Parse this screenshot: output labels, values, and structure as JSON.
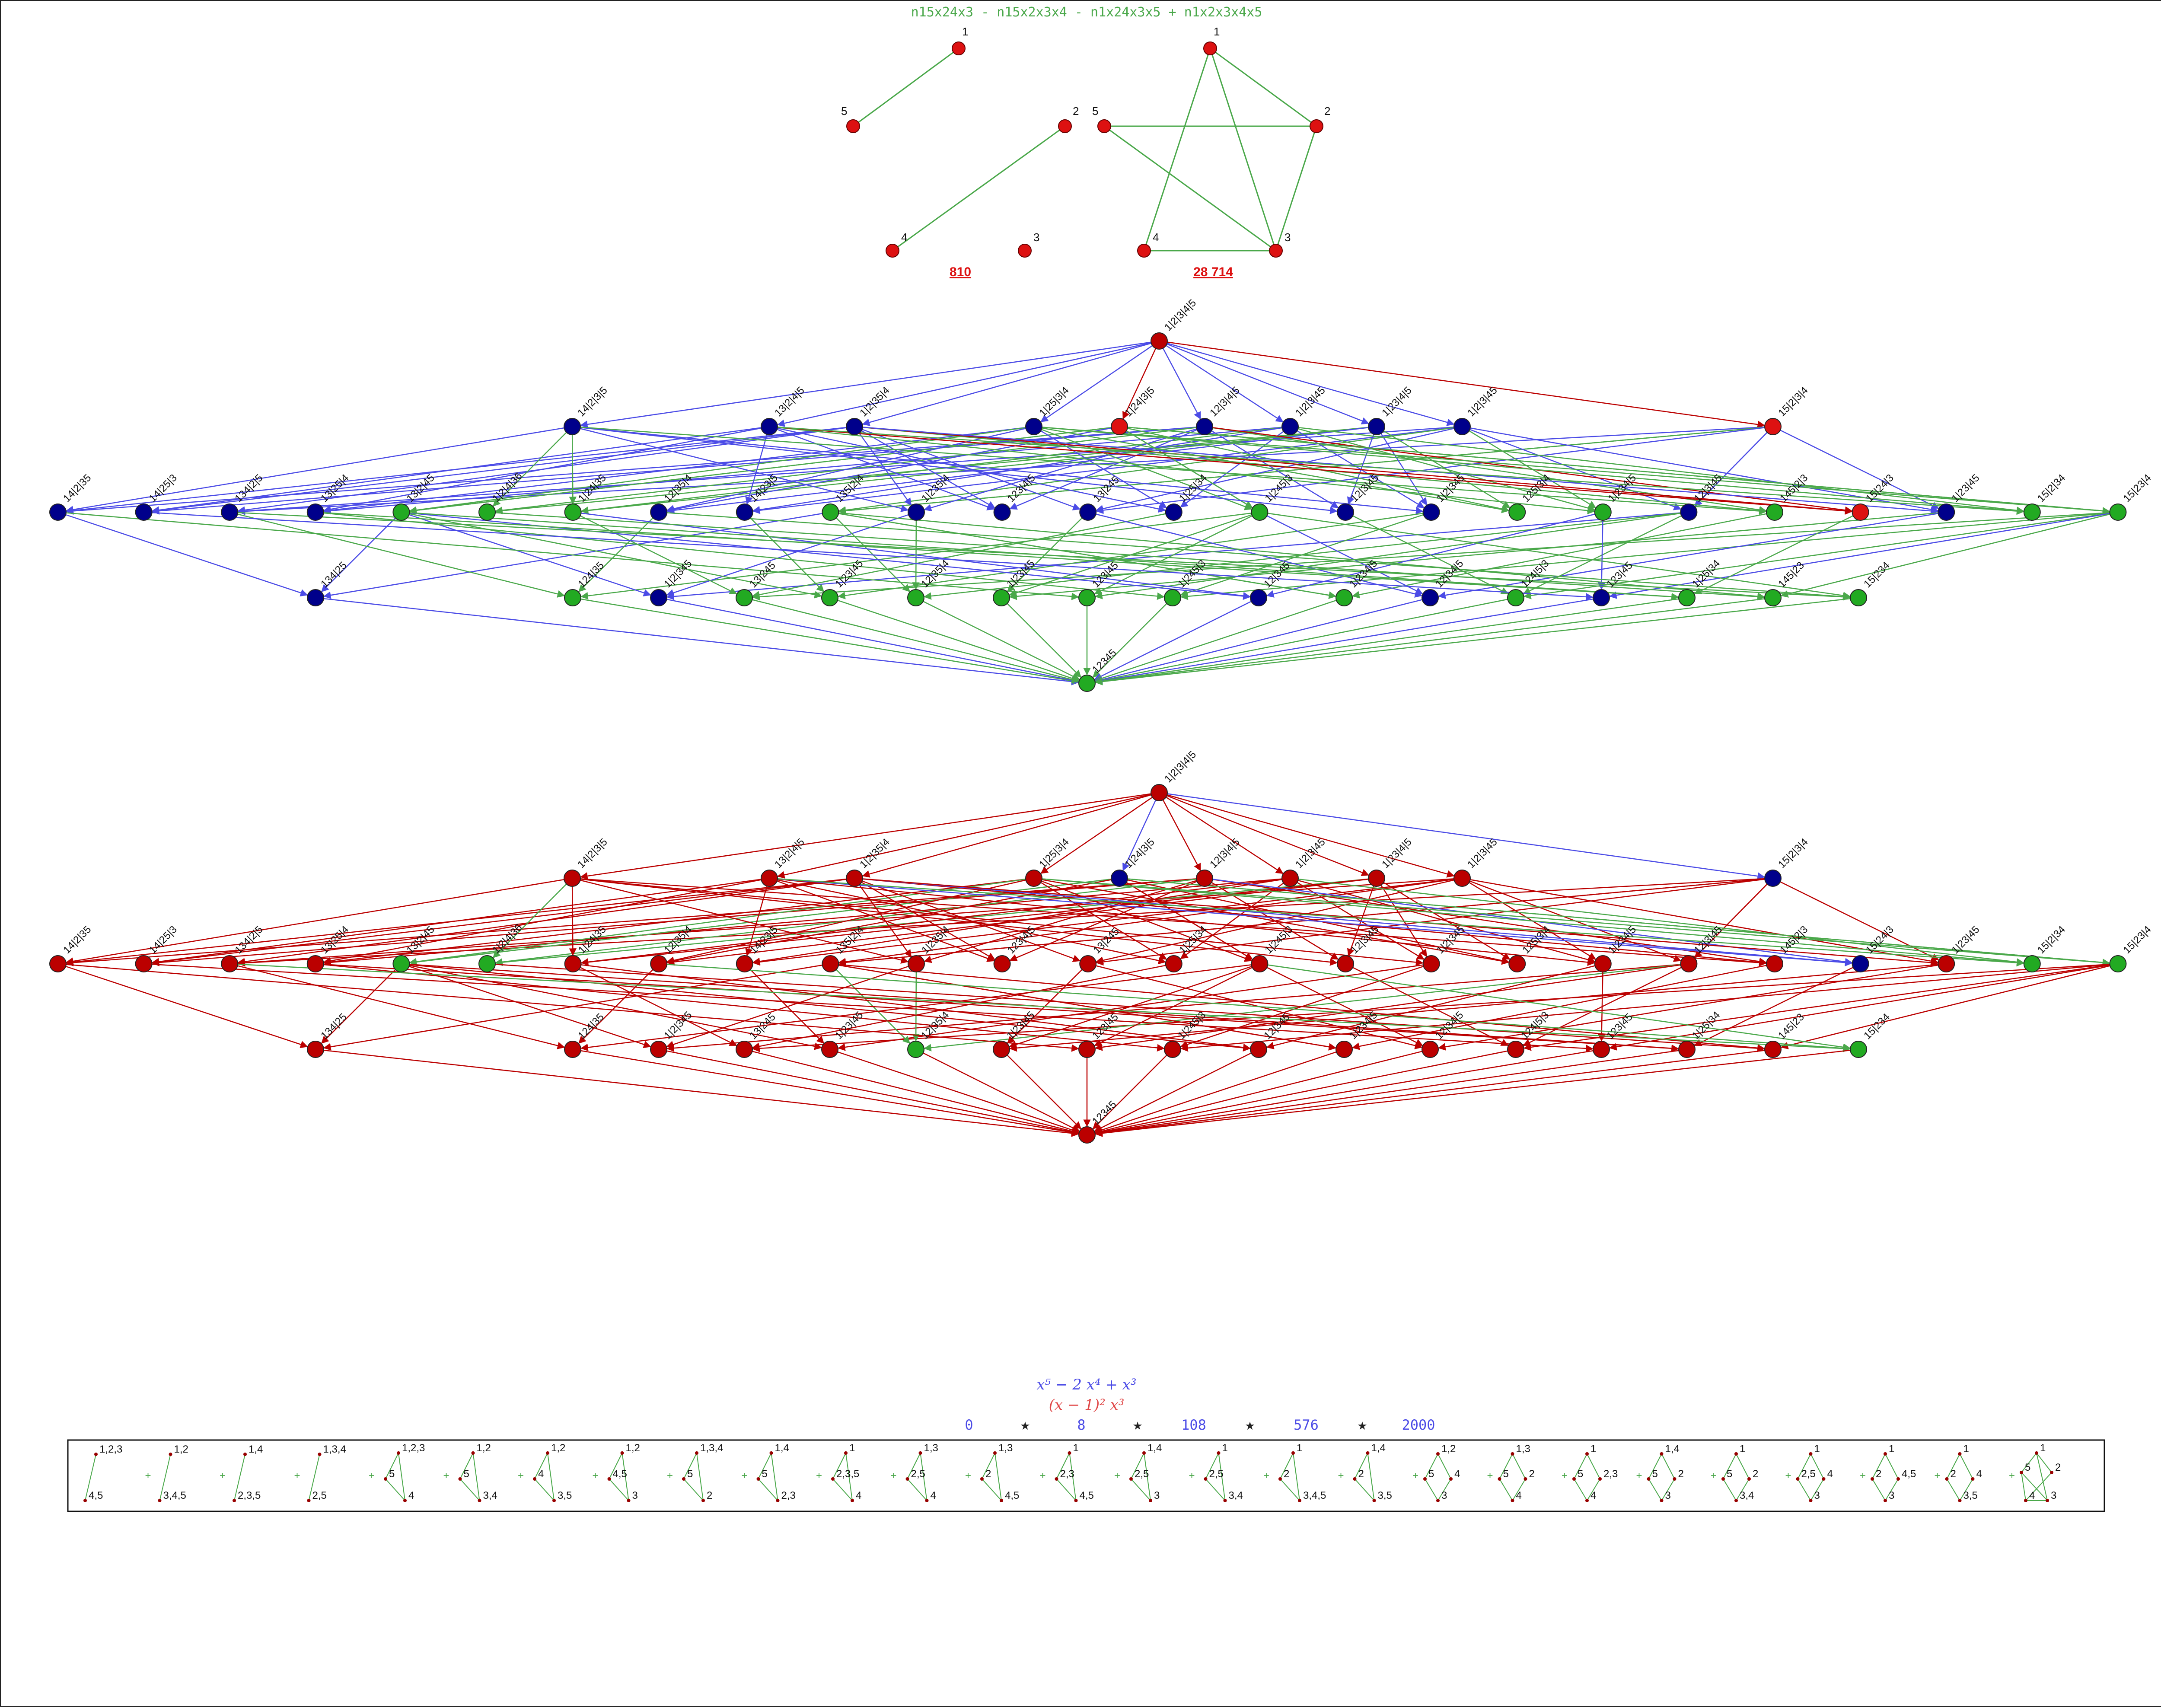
{
  "title": "n15x24x3 - n15x2x3x4 - n1x24x3x5 + n1x2x3x4x5",
  "colors": {
    "green": "#4aa84a",
    "red": "#cc0000",
    "blue": "#4b4be6",
    "node_red": "#dd1111",
    "node_dark_red": "#bb0000",
    "node_blue": "#00008b",
    "node_green": "#22aa22",
    "slate": "#5c7090"
  },
  "top_graphs": [
    {
      "nodes": [
        {
          "id": "1",
          "label": "1"
        },
        {
          "id": "2",
          "label": "2"
        },
        {
          "id": "3",
          "label": "3"
        },
        {
          "id": "4",
          "label": "4"
        },
        {
          "id": "5",
          "label": "5"
        }
      ],
      "edges": [
        [
          "1",
          "5"
        ],
        [
          "2",
          "4"
        ]
      ],
      "caption": "810"
    },
    {
      "nodes": [
        {
          "id": "1",
          "label": "1"
        },
        {
          "id": "2",
          "label": "2"
        },
        {
          "id": "3",
          "label": "3"
        },
        {
          "id": "4",
          "label": "4"
        },
        {
          "id": "5",
          "label": "5"
        }
      ],
      "edges": [
        [
          "1",
          "4"
        ],
        [
          "1",
          "3"
        ],
        [
          "1",
          "2"
        ],
        [
          "5",
          "2"
        ],
        [
          "5",
          "3"
        ],
        [
          "2",
          "3"
        ],
        [
          "4",
          "3"
        ]
      ],
      "caption": "28 714"
    }
  ],
  "lattice_labels": {
    "top": "1|2|3|4|5",
    "row1": [
      "14|2|3|5",
      "13|2|4|5",
      "1|2|35|4",
      "1|25|3|4",
      "1|24|3|5",
      "12|3|4|5",
      "1|2|3|45",
      "1|23|4|5",
      "1|2|3|45",
      "15|2|3|4"
    ],
    "row2": [
      "14|2|35",
      "14|25|3",
      "134|2|5",
      "13|25|4",
      "13|2|45",
      "1|2|4|36",
      "1|24|35",
      "12|35|4",
      "14|23|5",
      "135|2|4",
      "1|235|4",
      "123|4|5",
      "13|245",
      "1|25|34",
      "1|245|3",
      "12|3|45",
      "1|2|345",
      "125|3|4",
      "1|234|5",
      "12|3|45",
      "145|2|3",
      "15|24|3",
      "1|23|45",
      "15|2|34",
      "15|23|4"
    ],
    "row3": [
      "134|25",
      "124|35",
      "1|2|345",
      "13|245",
      "1|23|45",
      "12|35|4",
      "1|23|45",
      "123|45",
      "1|245|3",
      "12|345",
      "1|234|5",
      "12|34|5",
      "124|5|3",
      "123|45",
      "1|25|34",
      "145|23",
      "15|234"
    ],
    "bottom": "12345"
  },
  "lattice_top": {
    "top_color": "dark_red",
    "row1_colors": [
      "blue",
      "blue",
      "blue",
      "blue",
      "red",
      "blue",
      "blue",
      "blue",
      "blue",
      "red"
    ],
    "row2_colors": [
      "blue",
      "blue",
      "blue",
      "blue",
      "green",
      "green",
      "green",
      "blue",
      "blue",
      "green",
      "blue",
      "blue",
      "blue",
      "blue",
      "green",
      "blue",
      "blue",
      "green",
      "green",
      "blue",
      "green",
      "red",
      "blue",
      "green",
      "green"
    ],
    "row3_colors": [
      "blue",
      "green",
      "blue",
      "green",
      "green",
      "green",
      "green",
      "green",
      "green",
      "blue",
      "green",
      "blue",
      "green",
      "blue",
      "green",
      "green",
      "green"
    ],
    "bottom_color": "green"
  },
  "lattice_bottom": {
    "top_color": "dark_red",
    "row1_colors": [
      "dark_red",
      "dark_red",
      "dark_red",
      "dark_red",
      "blue",
      "dark_red",
      "dark_red",
      "dark_red",
      "dark_red",
      "blue"
    ],
    "row2_colors": [
      "dark_red",
      "dark_red",
      "dark_red",
      "dark_red",
      "green",
      "green",
      "dark_red",
      "dark_red",
      "dark_red",
      "dark_red",
      "dark_red",
      "dark_red",
      "dark_red",
      "dark_red",
      "dark_red",
      "dark_red",
      "dark_red",
      "dark_red",
      "dark_red",
      "dark_red",
      "dark_red",
      "blue",
      "dark_red",
      "green",
      "green"
    ],
    "row3_colors": [
      "dark_red",
      "dark_red",
      "dark_red",
      "dark_red",
      "dark_red",
      "green",
      "dark_red",
      "dark_red",
      "dark_red",
      "dark_red",
      "dark_red",
      "dark_red",
      "dark_red",
      "dark_red",
      "dark_red",
      "dark_red",
      "green"
    ],
    "bottom_color": "dark_red"
  },
  "formulas": {
    "poly1": "x⁵ − 2 x⁴ + x³",
    "poly2": "(x − 1)² x³",
    "sequence": [
      "0",
      "8",
      "108",
      "576",
      "2000"
    ],
    "seq_separator": "★"
  },
  "strip": {
    "items": [
      {
        "labels": [
          "1,2,3",
          "4,5"
        ]
      },
      {
        "labels": [
          "1,2",
          "3,4,5"
        ]
      },
      {
        "labels": [
          "1,4",
          "2,3,5"
        ]
      },
      {
        "labels": [
          "1,3,4",
          "2,5"
        ]
      },
      {
        "labels": [
          "1,2,3",
          "5",
          "4"
        ]
      },
      {
        "labels": [
          "1,2",
          "5",
          "3,4"
        ]
      },
      {
        "labels": [
          "1,2",
          "4",
          "3,5"
        ]
      },
      {
        "labels": [
          "1,2",
          "4,5",
          "3"
        ]
      },
      {
        "labels": [
          "1,3,4",
          "5",
          "2"
        ]
      },
      {
        "labels": [
          "1,4",
          "5",
          "2,3"
        ]
      },
      {
        "labels": [
          "1",
          "2,3,5",
          "4"
        ]
      },
      {
        "labels": [
          "1,3",
          "2,5",
          "4"
        ]
      },
      {
        "labels": [
          "1,3",
          "2",
          "4,5"
        ]
      },
      {
        "labels": [
          "1",
          "2,3",
          "4,5"
        ]
      },
      {
        "labels": [
          "1,4",
          "2,5",
          "3"
        ]
      },
      {
        "labels": [
          "1",
          "2,5",
          "3,4"
        ]
      },
      {
        "labels": [
          "1",
          "2",
          "3,4,5"
        ]
      },
      {
        "labels": [
          "1,4",
          "2",
          "3,5"
        ]
      },
      {
        "labels": [
          "1,2",
          "5",
          "4",
          "3"
        ]
      },
      {
        "labels": [
          "1,3",
          "5",
          "2",
          "4"
        ]
      },
      {
        "labels": [
          "1",
          "5",
          "2,3",
          "4"
        ]
      },
      {
        "labels": [
          "1,4",
          "5",
          "2",
          "3"
        ]
      },
      {
        "labels": [
          "1",
          "5",
          "2",
          "3,4"
        ]
      },
      {
        "labels": [
          "1",
          "2,5",
          "4",
          "3"
        ]
      },
      {
        "labels": [
          "1",
          "2",
          "4,5",
          "3"
        ]
      },
      {
        "labels": [
          "1",
          "2",
          "4",
          "3,5"
        ]
      },
      {
        "labels": [
          "1",
          "5",
          "2",
          "4",
          "3"
        ]
      }
    ],
    "separator": "+"
  }
}
